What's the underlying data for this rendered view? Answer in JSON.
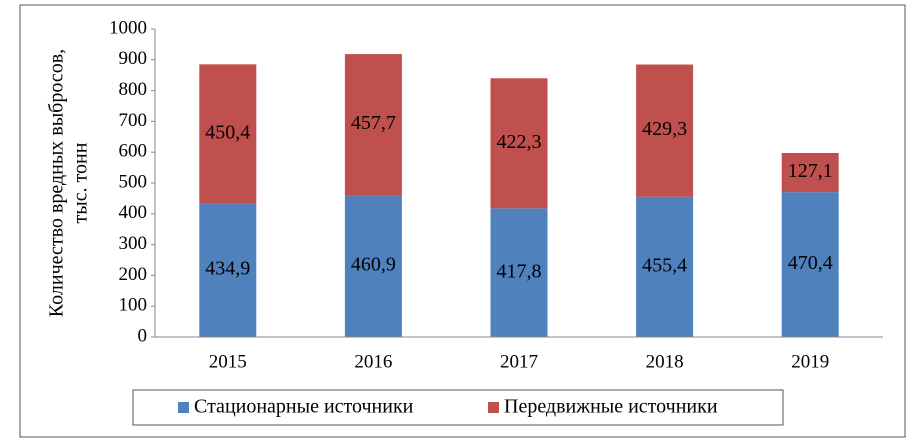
{
  "chart_data": {
    "type": "stacked_bar",
    "ylabel": [
      "Количество вредных выбросов,",
      "тыс. тонн"
    ],
    "categories": [
      "2015",
      "2016",
      "2017",
      "2018",
      "2019"
    ],
    "series": [
      {
        "name": "Стационарные источники",
        "color": "#4f81bd",
        "values": [
          434.9,
          460.9,
          417.8,
          455.4,
          470.4
        ],
        "value_labels": [
          "434,9",
          "460,9",
          "417,8",
          "455,4",
          "470,4"
        ]
      },
      {
        "name": "Передвижные источники",
        "color": "#c0504d",
        "values": [
          450.4,
          457.7,
          422.3,
          429.3,
          127.1
        ],
        "value_labels": [
          "450,4",
          "457,7",
          "422,3",
          "429,3",
          "127,1"
        ]
      }
    ],
    "ylim": [
      0,
      1000
    ],
    "yticks": [
      0,
      100,
      200,
      300,
      400,
      500,
      600,
      700,
      800,
      900,
      1000
    ],
    "grid": false,
    "legend": "bottom"
  }
}
